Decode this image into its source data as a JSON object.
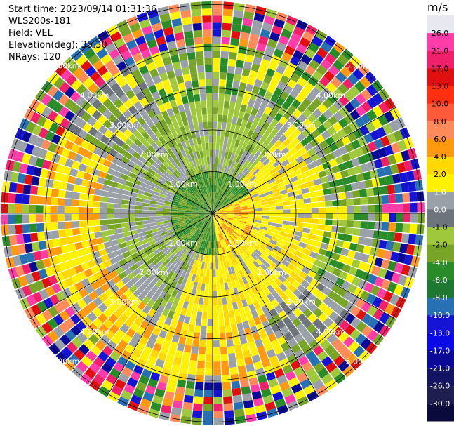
{
  "header": {
    "start_time": "Start time: 2023/09/14 01:31:36",
    "instrument": "WLS200s-181",
    "field": "Field: VEL",
    "elevation": "Elevation(deg): 35.30",
    "nrays": "NRays: 120"
  },
  "range_rings": {
    "ring_labels": [
      "1.00km",
      "2.00km",
      "3.00km",
      "4.00km",
      "5.00km"
    ],
    "ring_km": [
      1,
      2,
      3,
      4,
      5
    ]
  },
  "colorbar": {
    "unit": "m/s",
    "ticks": [
      "26.0",
      "21.0",
      "17.0",
      "13.0",
      "10.0",
      "8.0",
      "6.0",
      "4.0",
      "2.0",
      "1.0",
      "0.0",
      "-1.0",
      "-2.0",
      "-4.0",
      "-6.0",
      "-8.0",
      "-10.0",
      "-13.0",
      "-17.0",
      "-21.0",
      "-26.0",
      "-30.0"
    ],
    "colors": [
      "#e8e8f0",
      "#ff3ca8",
      "#f0206a",
      "#e01010",
      "#ff3010",
      "#ff5a3a",
      "#ff8a5a",
      "#ff9a10",
      "#ffd800",
      "#fff200",
      "#9aa0a8",
      "#6e747c",
      "#a0c83c",
      "#78a428",
      "#2a8c28",
      "#1e7832",
      "#2870b4",
      "#1414d2",
      "#0a0ae6",
      "#0a0a96",
      "#141464",
      "#1e1e50",
      "#0a0a3c"
    ]
  }
}
